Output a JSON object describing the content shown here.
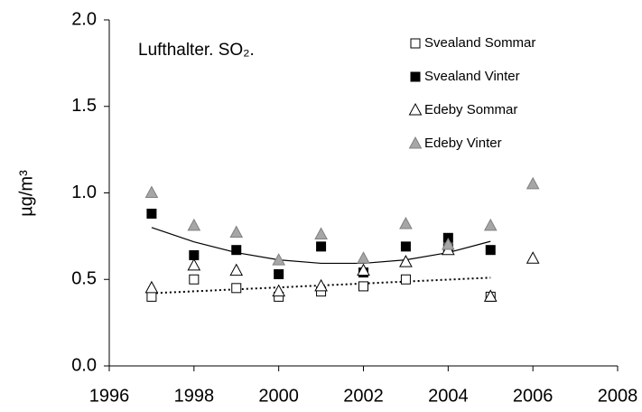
{
  "chart_data": {
    "type": "scatter",
    "title": "Lufthalter. SO₂.",
    "y_label": "µg/m³",
    "x": [
      1997,
      1998,
      1999,
      2000,
      2001,
      2002,
      2003,
      2004,
      2005,
      2006
    ],
    "xlim": [
      1996,
      2008
    ],
    "xticks": [
      1996,
      1998,
      2000,
      2002,
      2004,
      2006,
      2008
    ],
    "ylim": [
      0,
      2
    ],
    "yticks": [
      {
        "value": 0,
        "label": "0.0"
      },
      {
        "value": 0.5,
        "label": "0.5"
      },
      {
        "value": 1,
        "label": "1.0"
      },
      {
        "value": 1.5,
        "label": "1.5"
      },
      {
        "value": 2,
        "label": "2.0"
      }
    ],
    "series": [
      {
        "name": "Svealand Sommar",
        "marker": "square",
        "color": "#000000",
        "fill": "#ffffff",
        "values": [
          0.4,
          0.5,
          0.45,
          0.4,
          0.43,
          0.46,
          0.5,
          0.68,
          0.4,
          null
        ]
      },
      {
        "name": "Svealand Vinter",
        "marker": "square",
        "color": "#000000",
        "fill": "#000000",
        "values": [
          0.88,
          0.64,
          0.67,
          0.53,
          0.69,
          0.54,
          0.69,
          0.74,
          0.67,
          null
        ]
      },
      {
        "name": "Edeby Sommar",
        "marker": "triangle",
        "color": "#000000",
        "fill": "#ffffff",
        "values": [
          0.45,
          0.58,
          0.55,
          0.43,
          0.46,
          0.55,
          0.6,
          0.67,
          0.4,
          0.62
        ]
      },
      {
        "name": "Edeby Vinter",
        "marker": "triangle",
        "color": "#808080",
        "fill": "#a6a6a6",
        "values": [
          1.0,
          0.81,
          0.77,
          0.61,
          0.76,
          0.62,
          0.82,
          0.7,
          0.81,
          1.05
        ]
      }
    ],
    "trendlines": [
      {
        "style": "solid",
        "x": [
          1997,
          1998,
          1999,
          2000,
          2001,
          2002,
          2003,
          2004,
          2005
        ],
        "values": [
          0.8,
          0.717,
          0.655,
          0.613,
          0.593,
          0.593,
          0.613,
          0.655,
          0.72
        ]
      },
      {
        "style": "dotted",
        "x": [
          1997,
          2005
        ],
        "values": [
          0.42,
          0.51
        ]
      }
    ]
  }
}
